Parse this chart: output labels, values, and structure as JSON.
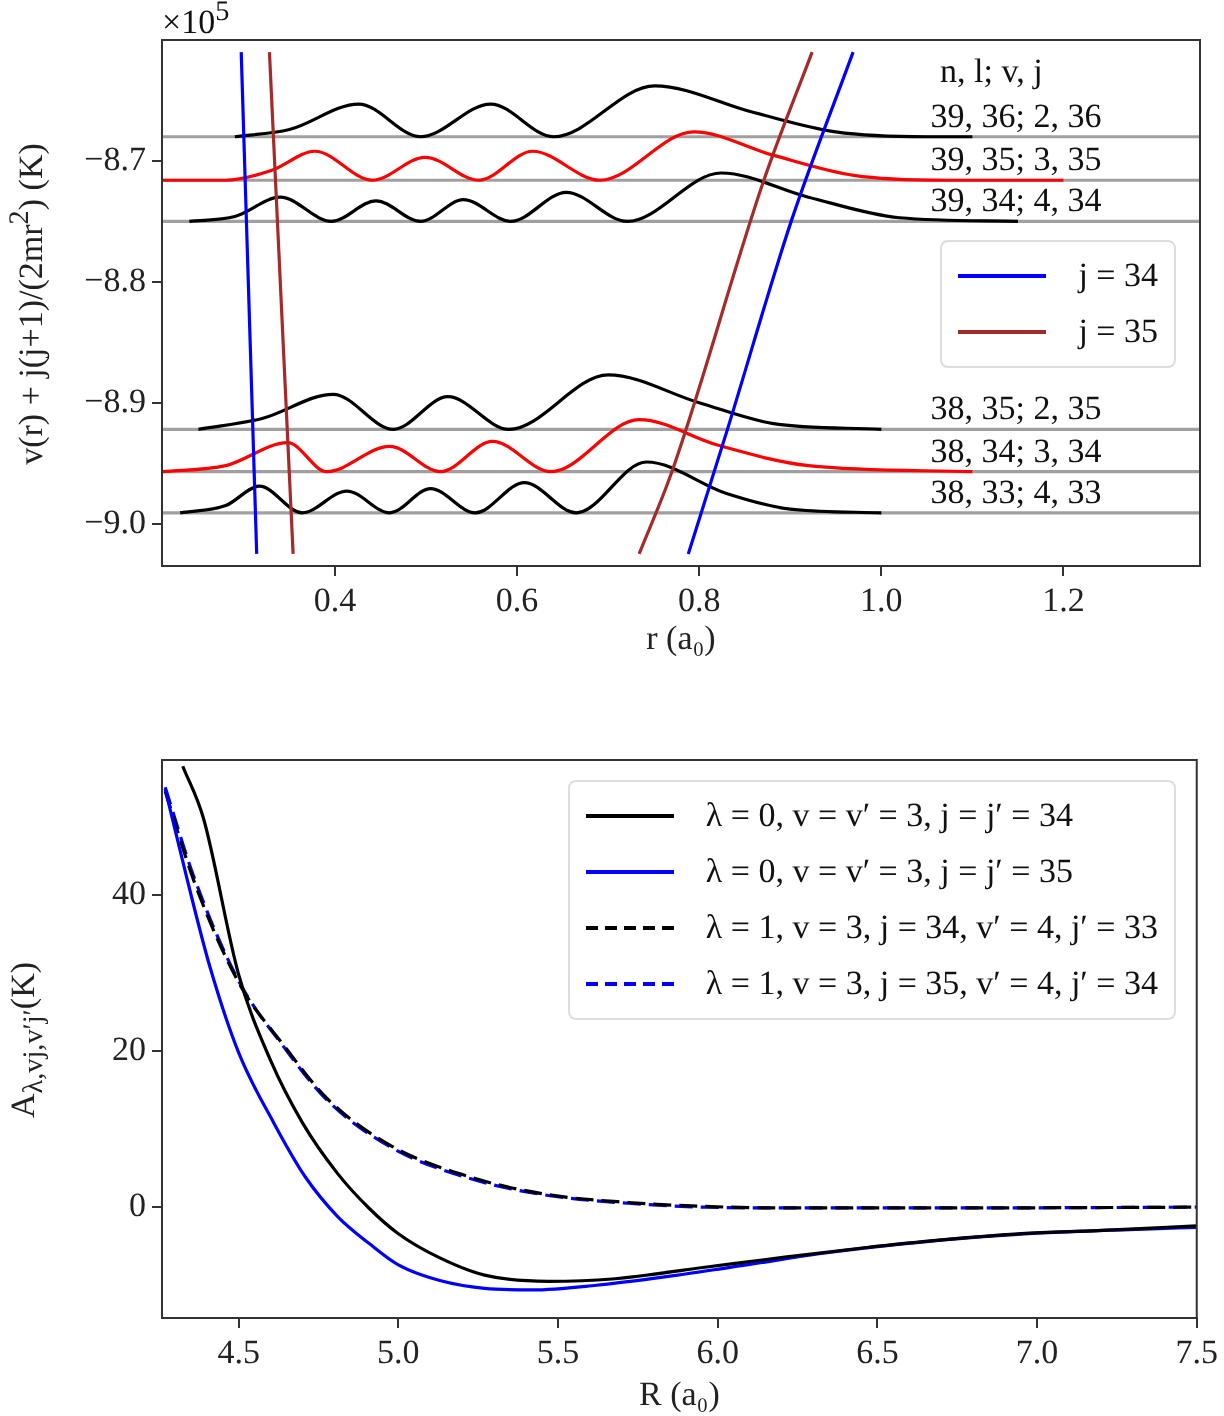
{
  "chart_data": [
    {
      "type": "line",
      "xlabel": "r (a₀)",
      "ylabel": "v(r) + j(j+1)/(2mr$^{2}$)  (K)",
      "annotations": [
        "×10$^{5}$",
        "n, l; v, j",
        {
          "text": "39, 36; 2, 36",
          "y": -8.68
        },
        {
          "text": "39, 35; 3, 35",
          "y": -8.716
        },
        {
          "text": "39, 34; 4, 34",
          "y": -8.75
        },
        {
          "text": "38, 35; 2, 35",
          "y": -8.922
        },
        {
          "text": "38, 34; 3, 34",
          "y": -8.957
        },
        {
          "text": "38, 33; 4, 33",
          "y": -8.991
        }
      ],
      "xlim": [
        0.21,
        1.35
      ],
      "ylim": [
        -9.035,
        -8.6
      ],
      "xticks": [
        0.4,
        0.6,
        0.8,
        {
          "value": 1,
          "label": "1.0"
        },
        1.2
      ],
      "yticks": [
        {
          "value": -9,
          "label": "−9.0"
        },
        {
          "value": -8.9,
          "label": "−8.9"
        },
        {
          "value": -8.8,
          "label": "−8.8"
        },
        {
          "value": -8.7,
          "label": "−8.7"
        }
      ],
      "legend": "right",
      "ref_lines": [
        {
          "axis": "y",
          "value": -8.68,
          "color": "#a0a0a0"
        },
        {
          "axis": "y",
          "value": -8.716,
          "color": "#a0a0a0"
        },
        {
          "axis": "y",
          "value": -8.75,
          "color": "#a0a0a0"
        },
        {
          "axis": "y",
          "value": -8.922,
          "color": "#a0a0a0"
        },
        {
          "axis": "y",
          "value": -8.957,
          "color": "#a0a0a0"
        },
        {
          "axis": "y",
          "value": -8.991,
          "color": "#a0a0a0"
        }
      ],
      "series": [
        {
          "name": "j = 34",
          "color": "#0000ff",
          "x": [
            0.297,
            0.314,
            0.5,
            0.788,
            0.831,
            0.901,
            0.969
          ],
          "values": [
            -8.61,
            -9.025,
            null,
            -9.025,
            -8.922,
            -8.75,
            -8.61
          ]
        },
        {
          "name": "j = 35",
          "color": "#a52a2a",
          "x": [
            0.328,
            0.354,
            0.5,
            0.734,
            0.77,
            0.871,
            0.924
          ],
          "values": [
            -8.61,
            -9.025,
            null,
            -9.025,
            -8.957,
            -8.716,
            -8.61
          ]
        },
        {
          "color": "#000000",
          "x": [
            0.29,
            0.35,
            0.426,
            0.494,
            0.571,
            0.64,
            0.751,
            0.86,
            0.95,
            1.05,
            1.1
          ],
          "values": [
            -8.68,
            -8.674,
            -8.653,
            -8.68,
            -8.653,
            -8.68,
            -8.638,
            -8.66,
            -8.676,
            -8.68,
            -8.68
          ]
        },
        {
          "color": "#ff0000",
          "x": [
            0.21,
            0.28,
            0.33,
            0.378,
            0.441,
            0.499,
            0.558,
            0.617,
            0.691,
            0.794,
            0.88,
            0.97,
            1.07,
            1.2
          ],
          "values": [
            -8.716,
            -8.716,
            -8.708,
            -8.692,
            -8.716,
            -8.697,
            -8.716,
            -8.692,
            -8.716,
            -8.676,
            -8.695,
            -8.712,
            -8.716,
            -8.716
          ]
        },
        {
          "color": "#000000",
          "x": [
            0.24,
            0.29,
            0.34,
            0.396,
            0.445,
            0.494,
            0.541,
            0.593,
            0.654,
            0.721,
            0.824,
            0.92,
            1.02,
            1.15
          ],
          "values": [
            -8.75,
            -8.746,
            -8.73,
            -8.75,
            -8.733,
            -8.75,
            -8.732,
            -8.75,
            -8.726,
            -8.75,
            -8.71,
            -8.73,
            -8.747,
            -8.75
          ]
        },
        {
          "color": "#000000",
          "x": [
            0.25,
            0.32,
            0.398,
            0.464,
            0.524,
            0.591,
            0.7,
            0.8,
            0.88,
            1.0
          ],
          "values": [
            -8.922,
            -8.913,
            -8.893,
            -8.922,
            -8.895,
            -8.922,
            -8.877,
            -8.9,
            -8.917,
            -8.922
          ]
        },
        {
          "color": "#ff0000",
          "x": [
            0.21,
            0.28,
            0.348,
            0.391,
            0.46,
            0.516,
            0.573,
            0.637,
            0.734,
            0.82,
            0.92,
            1.1
          ],
          "values": [
            -8.957,
            -8.952,
            -8.933,
            -8.957,
            -8.936,
            -8.957,
            -8.932,
            -8.957,
            -8.914,
            -8.935,
            -8.952,
            -8.957
          ]
        },
        {
          "color": "#000000",
          "x": [
            0.23,
            0.28,
            0.317,
            0.364,
            0.413,
            0.46,
            0.505,
            0.554,
            0.608,
            0.665,
            0.742,
            0.83,
            0.9,
            1.0
          ],
          "values": [
            -8.991,
            -8.985,
            -8.969,
            -8.991,
            -8.973,
            -8.991,
            -8.971,
            -8.991,
            -8.966,
            -8.991,
            -8.949,
            -8.975,
            -8.988,
            -8.991
          ]
        }
      ]
    },
    {
      "type": "line",
      "xlabel": "R (a₀)",
      "ylabel": "A$_{λ,vj,v′j′}$(K)",
      "xlim": [
        4.26,
        7.5
      ],
      "ylim": [
        -14.2,
        57.3
      ],
      "xticks": [
        4.5,
        {
          "value": 5,
          "label": "5.0"
        },
        5.5,
        {
          "value": 6,
          "label": "6.0"
        },
        6.5,
        {
          "value": 7,
          "label": "7.0"
        },
        7.5
      ],
      "yticks": [
        0,
        20,
        40
      ],
      "legend": "top right",
      "series": [
        {
          "name": "λ = 0, v = v′ = 3, j = j′ = 34",
          "color": "#000000",
          "line_style": "solid",
          "x": [
            4.325,
            4.39,
            4.5,
            4.6,
            4.7,
            4.81,
            4.91,
            5.0,
            5.13,
            5.27,
            5.47,
            5.67,
            5.96,
            6.21,
            6.46,
            6.7,
            6.95,
            7.19,
            7.5
          ],
          "values": [
            56.5,
            49.8,
            29.8,
            18.8,
            10.8,
            4.3,
            -0.2,
            -3.4,
            -6.5,
            -8.7,
            -9.5,
            -9.2,
            -7.7,
            -6.4,
            -5.2,
            -4.2,
            -3.4,
            -3.0,
            -2.4
          ]
        },
        {
          "name": "λ = 0, v = v′ = 3, j = j′ = 35",
          "color": "#0000ff",
          "line_style": "solid",
          "x": [
            4.27,
            4.34,
            4.41,
            4.5,
            4.61,
            4.71,
            4.81,
            4.91,
            5.0,
            5.13,
            5.27,
            5.42,
            5.62,
            5.84,
            6.09,
            6.33,
            6.58,
            6.82,
            7.07,
            7.5
          ],
          "values": [
            53.6,
            41.8,
            30.8,
            19.8,
            10.8,
            3.8,
            -1.2,
            -4.7,
            -7.4,
            -9.4,
            -10.4,
            -10.6,
            -10.0,
            -8.9,
            -7.4,
            -5.9,
            -4.7,
            -3.8,
            -3.2,
            -2.6
          ]
        },
        {
          "name": "λ = 1, v = 3, j = 34, v′ = 4, j′ = 33",
          "color": "#000000",
          "line_style": "dashed",
          "x": [
            4.27,
            4.36,
            4.5,
            4.64,
            4.78,
            4.98,
            5.23,
            5.47,
            5.72,
            5.96,
            6.21,
            6.7,
            7.5
          ],
          "values": [
            53.3,
            41.8,
            28.8,
            20.8,
            13.8,
            7.8,
            3.8,
            1.6,
            0.6,
            0.1,
            -0.1,
            -0.1,
            0
          ]
        },
        {
          "name": "λ = 1, v = 3, j = 35, v′ = 4, j′ = 34",
          "color": "#0000ff",
          "line_style": "dashed",
          "x": [
            4.27,
            4.36,
            4.5,
            4.64,
            4.78,
            4.98,
            5.23,
            5.47,
            5.72,
            5.96,
            6.21,
            6.7,
            7.5
          ],
          "values": [
            53.8,
            42.3,
            29.0,
            20.6,
            13.6,
            7.6,
            3.6,
            1.5,
            0.5,
            0.0,
            -0.1,
            -0.1,
            0
          ]
        }
      ]
    }
  ]
}
